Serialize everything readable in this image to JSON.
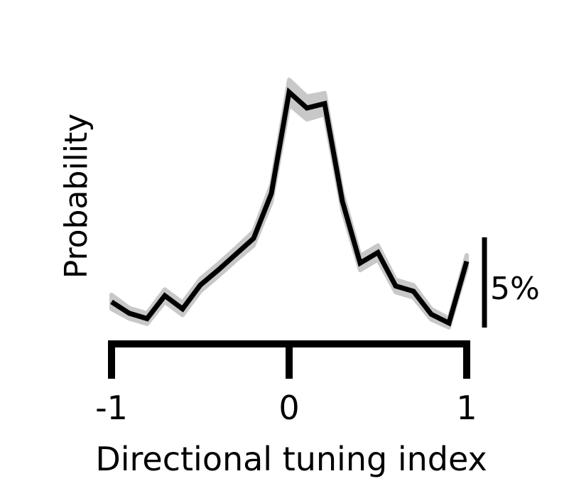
{
  "chart_data": {
    "type": "line",
    "title": "",
    "xlabel": "Directional tuning index",
    "ylabel": "Probability",
    "xlim": [
      -1,
      1
    ],
    "ylim": [
      0,
      27
    ],
    "x_ticks": [
      -1,
      0,
      1
    ],
    "x_tick_labels": [
      "-1",
      "0",
      "1"
    ],
    "grid": false,
    "legend": "none",
    "scale_bar": {
      "value": 5,
      "label": "5%"
    },
    "series": [
      {
        "color": "#000000",
        "error_band_color": "#c8c8c8",
        "x": [
          -1.0,
          -0.9,
          -0.8,
          -0.7,
          -0.6,
          -0.5,
          -0.4,
          -0.3,
          -0.2,
          -0.1,
          0.0,
          0.1,
          0.2,
          0.3,
          0.4,
          0.5,
          0.6,
          0.7,
          0.8,
          0.9,
          1.0
        ],
        "y": [
          3.0,
          1.7,
          1.1,
          3.7,
          2.2,
          4.9,
          6.6,
          8.4,
          10.2,
          15.3,
          26.8,
          25.0,
          25.5,
          14.4,
          7.4,
          8.6,
          4.8,
          4.2,
          1.6,
          0.6,
          7.6
        ],
        "band": [
          0.8,
          0.6,
          0.6,
          0.7,
          0.7,
          0.7,
          0.7,
          0.7,
          0.8,
          1.0,
          1.4,
          1.3,
          1.2,
          1.0,
          0.8,
          0.8,
          0.7,
          0.7,
          0.6,
          0.5,
          0.7
        ]
      }
    ]
  }
}
